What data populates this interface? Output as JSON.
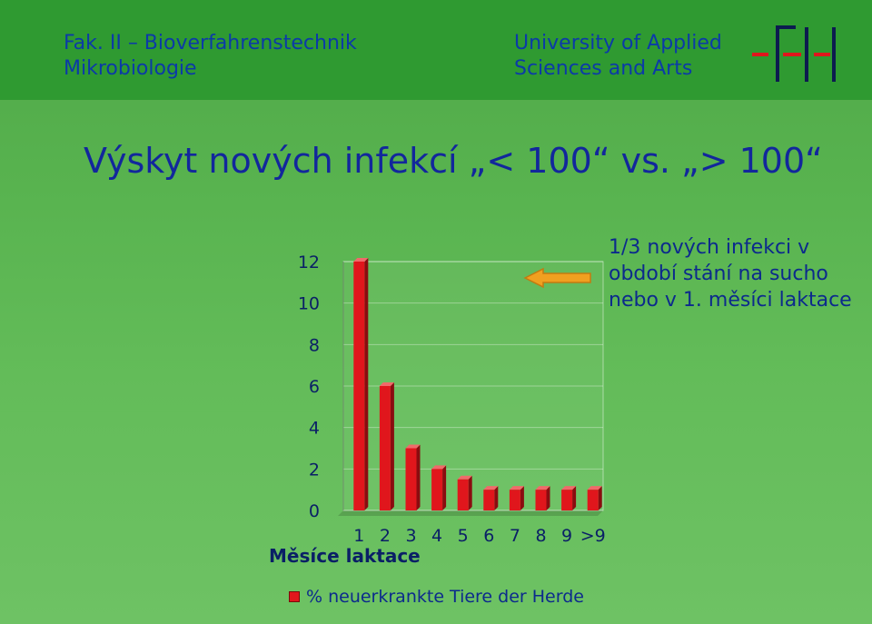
{
  "header": {
    "left_line1": "Fak. II – Bioverfahrenstechnik",
    "left_line2": "Mikrobiologie",
    "right_line1": "University of Applied",
    "right_line2": "Sciences and Arts"
  },
  "slide_title": "Výskyt nových infekcí „< 100“ vs. „> 100“",
  "annotation": "1/3 nových infekci v období stání na sucho nebo v 1. měsíci laktace",
  "colors": {
    "bar": "#e0161c",
    "bar_top": "#f06a6a",
    "bar_side": "#8a0c10",
    "arrow": "#f0a020",
    "header": "#2f9a31",
    "title": "#12279c"
  },
  "chart_data": {
    "type": "bar",
    "categories": [
      "1",
      "2",
      "3",
      "4",
      "5",
      "6",
      "7",
      "8",
      "9",
      ">9"
    ],
    "series": [
      {
        "name": "% neuerkrankte Tiere der Herde",
        "values": [
          12,
          6,
          3,
          2,
          1.5,
          1,
          1,
          1,
          1,
          1
        ]
      }
    ],
    "xlabel": "Měsíce  laktace",
    "ylabel": "",
    "ylim": [
      0,
      12
    ],
    "yticks": [
      "0",
      "2",
      "4",
      "6",
      "8",
      "10",
      "12"
    ],
    "grid": true,
    "legend": "bottom"
  }
}
